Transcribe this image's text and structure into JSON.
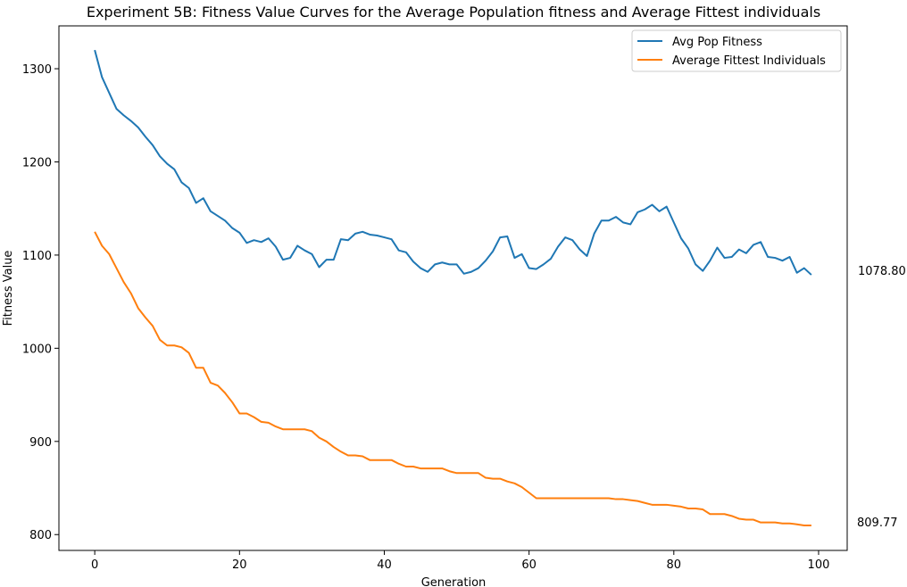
{
  "chart_data": {
    "type": "line",
    "title": "Experiment 5B: Fitness Value Curves for the Average Population fitness and Average Fittest individuals",
    "xlabel": "Generation",
    "ylabel": "Fitness Value",
    "xlim": [
      -4.95,
      103.95
    ],
    "ylim": [
      783,
      1346
    ],
    "xticks": [
      0,
      20,
      40,
      60,
      80,
      100
    ],
    "yticks": [
      800,
      900,
      1000,
      1100,
      1200,
      1300
    ],
    "grid": false,
    "legend_position": "top-right",
    "series": [
      {
        "name": "Avg Pop Fitness",
        "color": "#1f77b4",
        "end_label": "1078.80",
        "values": [
          1320,
          1291,
          1274,
          1257,
          1250,
          1244,
          1237,
          1227,
          1218,
          1206,
          1198,
          1192,
          1178,
          1172,
          1156,
          1161,
          1147,
          1142,
          1137,
          1129,
          1124,
          1113,
          1116,
          1114,
          1118,
          1109,
          1095,
          1097,
          1110,
          1105,
          1101,
          1087,
          1095,
          1095,
          1117,
          1116,
          1123,
          1125,
          1122,
          1121,
          1119,
          1117,
          1105,
          1103,
          1093,
          1086,
          1082,
          1090,
          1092,
          1090,
          1090,
          1080,
          1082,
          1086,
          1094,
          1104,
          1119,
          1120,
          1097,
          1101,
          1086,
          1085,
          1090,
          1096,
          1109,
          1119,
          1116,
          1106,
          1099,
          1123,
          1137,
          1137,
          1141,
          1135,
          1133,
          1146,
          1149,
          1154,
          1147,
          1152,
          1135,
          1118,
          1107,
          1090,
          1083,
          1094,
          1108,
          1097,
          1098,
          1106,
          1102,
          1111,
          1114,
          1098,
          1097,
          1094,
          1098,
          1081,
          1086,
          1078.8
        ]
      },
      {
        "name": "Average Fittest Individuals",
        "color": "#ff7f0e",
        "end_label": "809.77",
        "values": [
          1125,
          1110,
          1101,
          1086,
          1071,
          1059,
          1043,
          1033,
          1024,
          1009,
          1003,
          1003,
          1001,
          995,
          979,
          979,
          963,
          960,
          952,
          942,
          930,
          930,
          926,
          921,
          920,
          916,
          913,
          913,
          913,
          913,
          911,
          904,
          900,
          894,
          889,
          885,
          885,
          884,
          880,
          880,
          880,
          880,
          876,
          873,
          873,
          871,
          871,
          871,
          871,
          868,
          866,
          866,
          866,
          866,
          861,
          860,
          860,
          857,
          855,
          851,
          845,
          839,
          839,
          839,
          839,
          839,
          839,
          839,
          839,
          839,
          839,
          839,
          838,
          838,
          837,
          836,
          834,
          832,
          832,
          832,
          831,
          830,
          828,
          828,
          827,
          822,
          822,
          822,
          820,
          817,
          816,
          816,
          813,
          813,
          813,
          812,
          812,
          811,
          809.77,
          809.77
        ]
      }
    ]
  }
}
